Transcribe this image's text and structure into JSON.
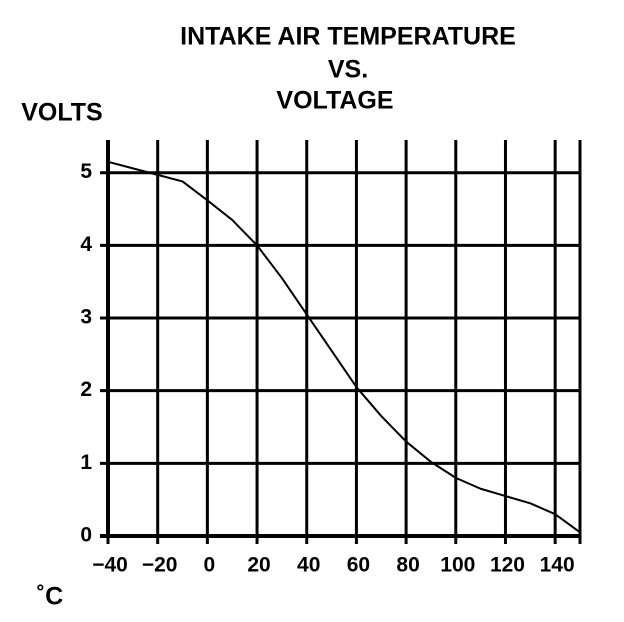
{
  "chart_data": {
    "type": "line",
    "title": [
      "INTAKE AIR TEMPERATURE",
      "VS.",
      "VOLTAGE"
    ],
    "y_label": "VOLTS",
    "x_label": "˚C",
    "x": [
      -40,
      -20,
      -10,
      0,
      10,
      20,
      30,
      40,
      50,
      60,
      70,
      80,
      90,
      100,
      110,
      120,
      130,
      140,
      150
    ],
    "series": [
      {
        "name": "Voltage",
        "color": "#000000",
        "values": [
          5.15,
          4.97,
          4.88,
          4.62,
          4.35,
          4.0,
          3.55,
          3.05,
          2.55,
          2.05,
          1.65,
          1.3,
          1.02,
          0.8,
          0.65,
          0.55,
          0.45,
          0.3,
          0.05
        ]
      }
    ],
    "xlim": [
      -40,
      150
    ],
    "xticks": [
      {
        "value": -40,
        "label": "−40"
      },
      {
        "value": -20,
        "label": "−20"
      },
      0,
      20,
      40,
      60,
      80,
      100,
      120,
      140
    ],
    "ylim": [
      0,
      5.45
    ],
    "yticks": [
      0,
      1,
      2,
      3,
      4,
      5
    ],
    "grid": true
  }
}
